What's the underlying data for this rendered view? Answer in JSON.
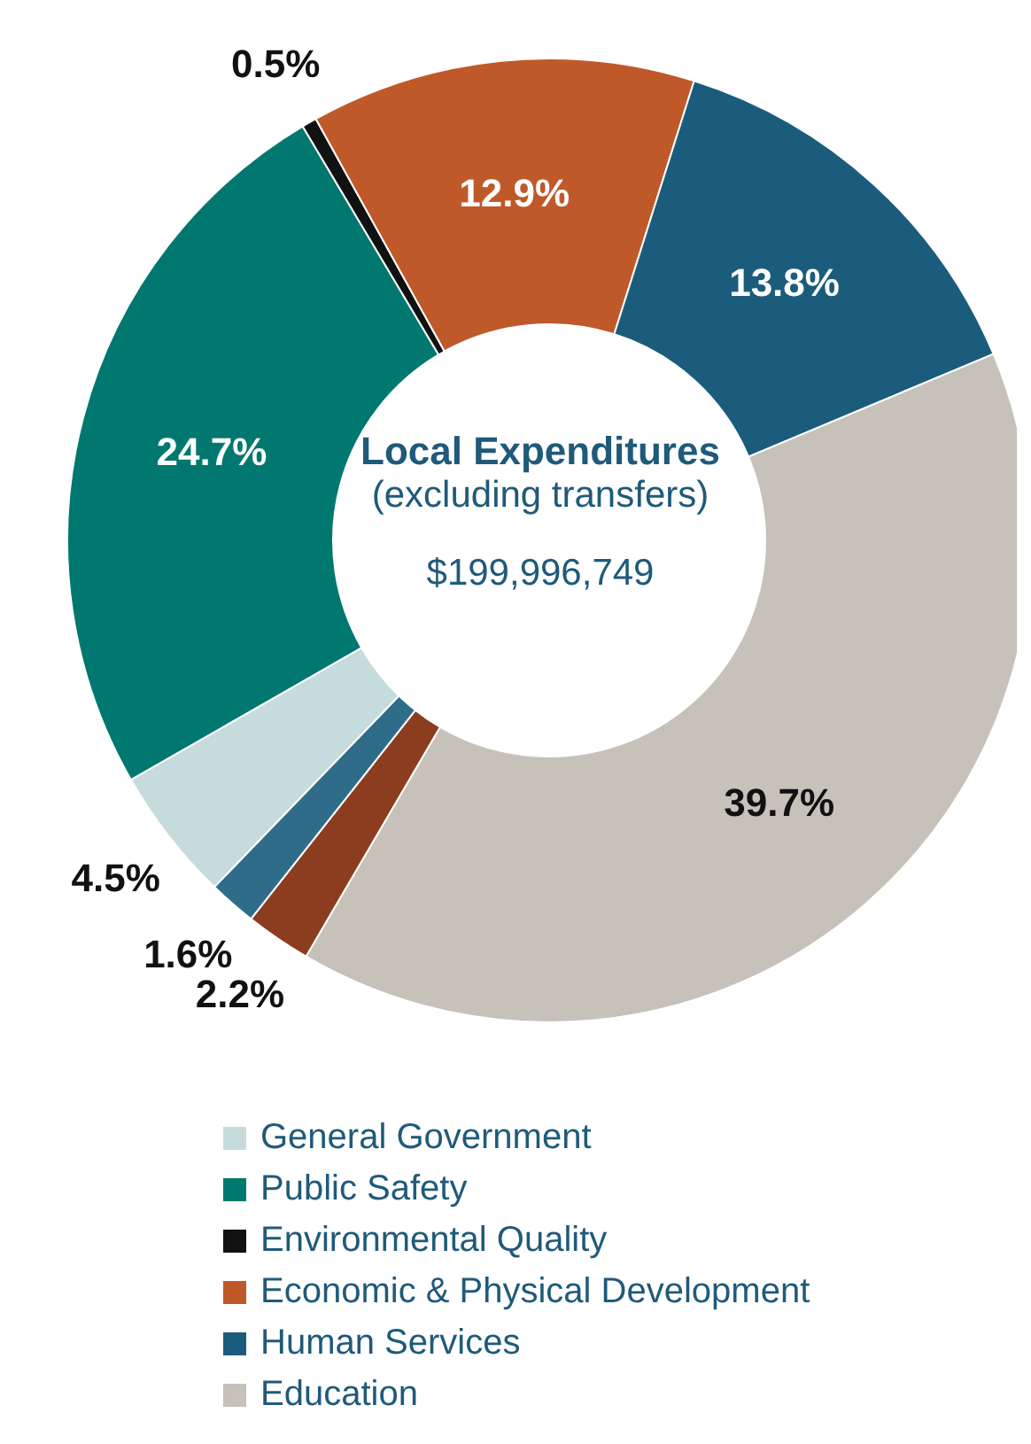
{
  "chart_data": {
    "type": "donut",
    "title": "Local Expenditures",
    "subtitle": "(excluding transfers)",
    "annotations": [
      "$199,996,749"
    ],
    "categories": [
      "General Government",
      "Public Safety",
      "Environmental Quality",
      "Economic & Physical Development",
      "Human Services",
      "Education",
      null,
      null
    ],
    "values": [
      4.5,
      24.7,
      0.5,
      12.9,
      13.8,
      39.7,
      2.2,
      1.6
    ],
    "value_labels": [
      "4.5%",
      "24.7%",
      "0.5%",
      "12.9%",
      "13.8%",
      "39.7%",
      "2.2%",
      "1.6%"
    ],
    "colors": [
      "#c6dcdc",
      "#00786f",
      "#111111",
      "#c0592a",
      "#1b5c7c",
      "#c6c1b9",
      "#8c3d1f",
      "#2f6c8a"
    ],
    "legend": "bottom"
  }
}
